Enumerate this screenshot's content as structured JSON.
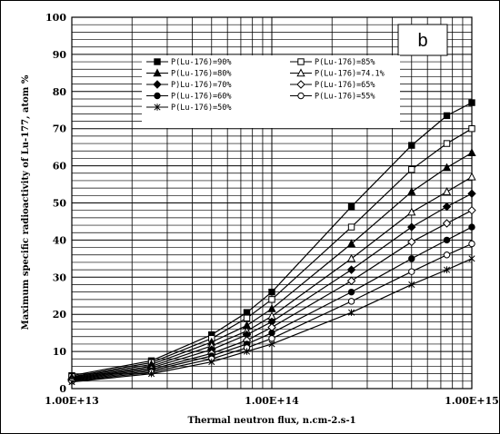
{
  "chart_data": {
    "type": "line",
    "panel_label": "b",
    "xlabel": "Thermal neutron flux, n.cm-2.s-1",
    "ylabel": "Maximum specific radioactivity of Lu-177, atom %",
    "x_scale": "log",
    "xlim": [
      10000000000000.0,
      1000000000000000.0
    ],
    "ylim": [
      0,
      100
    ],
    "x_tick_labels": [
      "1.00E+13",
      "1.00E+14",
      "1.00E+15"
    ],
    "x_tick_values": [
      10000000000000.0,
      100000000000000.0,
      1000000000000000.0
    ],
    "y_tick_labels": [
      "0",
      "10",
      "20",
      "30",
      "40",
      "50",
      "60",
      "70",
      "80",
      "90",
      "100"
    ],
    "y_tick_values": [
      0,
      10,
      20,
      30,
      40,
      50,
      60,
      70,
      80,
      90,
      100
    ],
    "grid": true,
    "legend_position": "upper-left inside plot, two columns",
    "x": [
      10000000000000.0,
      25000000000000.0,
      50000000000000.0,
      75000000000000.0,
      100000000000000.0,
      250000000000000.0,
      500000000000000.0,
      750000000000000.0,
      1000000000000000.0
    ],
    "series": [
      {
        "name": "P(Lu-176)=90%",
        "marker": "square-filled",
        "values": [
          3.5,
          7.5,
          14.5,
          20.5,
          26,
          49,
          65.5,
          73.5,
          77
        ]
      },
      {
        "name": "P(Lu-176)=85%",
        "marker": "square-open",
        "values": [
          3.2,
          7.0,
          13.5,
          19,
          24,
          43.5,
          59,
          66,
          70
        ]
      },
      {
        "name": "P(Lu-176)=80%",
        "marker": "triangle-filled",
        "values": [
          3.0,
          6.5,
          12.5,
          17,
          21.5,
          39,
          53,
          59.5,
          63.5
        ]
      },
      {
        "name": "P(Lu-176)=74.1%",
        "marker": "triangle-open",
        "values": [
          2.8,
          6.0,
          11.5,
          15.5,
          19.5,
          35,
          47.5,
          53,
          57
        ]
      },
      {
        "name": "P)Lu-176)=70%",
        "marker": "diamond-filled",
        "values": [
          2.6,
          5.6,
          10.5,
          14.5,
          18,
          32,
          43.5,
          49,
          52.5
        ]
      },
      {
        "name": "P(Lu-176)=65%",
        "marker": "diamond-open",
        "values": [
          2.4,
          5.2,
          9.5,
          13,
          16.5,
          29,
          39.5,
          44.5,
          48
        ]
      },
      {
        "name": "P(Lu-176)=60%",
        "marker": "circle-filled",
        "values": [
          2.2,
          4.8,
          8.8,
          12,
          15,
          26,
          35,
          40,
          43.5
        ]
      },
      {
        "name": "P(Lu-176)=55%",
        "marker": "circle-open",
        "values": [
          2.0,
          4.4,
          8.0,
          11,
          13.5,
          23.5,
          31.5,
          36,
          39
        ]
      },
      {
        "name": "P(Lu-176)=50%",
        "marker": "asterisk",
        "values": [
          1.8,
          4.0,
          7.2,
          10,
          12,
          20.5,
          28,
          32,
          35
        ]
      }
    ]
  }
}
